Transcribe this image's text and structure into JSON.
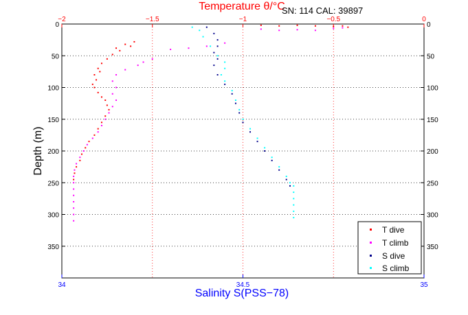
{
  "chart_data": {
    "type": "scatter",
    "title": "Temperature θ/°C",
    "annotation": "SN: 114  CAL: 39897",
    "ylabel": "Depth (m)",
    "xlabel_bottom": "Salinity S(PSS−78)",
    "ylim": [
      0,
      400
    ],
    "y_reversed": true,
    "top_axis": {
      "lim": [
        -2,
        0
      ],
      "ticks": [
        -2,
        -1.5,
        -1,
        -0.5,
        0
      ],
      "tick_labels": [
        "−2",
        "−1.5",
        "−1",
        "−0.5",
        "0"
      ],
      "color": "#ff0000"
    },
    "bottom_axis": {
      "lim": [
        34,
        35
      ],
      "ticks": [
        34,
        34.5,
        35
      ],
      "tick_labels": [
        "34",
        "34.5",
        "35"
      ],
      "color": "#0000ff"
    },
    "y_ticks": [
      0,
      50,
      100,
      150,
      200,
      250,
      300,
      350
    ],
    "y_tick_labels": [
      "0",
      "50",
      "100",
      "150",
      "200",
      "250",
      "300",
      "350"
    ],
    "grid": true,
    "legend_position": "bottom-right",
    "series": [
      {
        "name": "T dive",
        "color": "#ff0000",
        "axis": "top",
        "points": [
          [
            -1.6,
            28
          ],
          [
            -1.65,
            32
          ],
          [
            -1.62,
            35
          ],
          [
            -1.7,
            38
          ],
          [
            -1.68,
            42
          ],
          [
            -1.72,
            48
          ],
          [
            -1.75,
            55
          ],
          [
            -1.78,
            62
          ],
          [
            -1.8,
            70
          ],
          [
            -1.79,
            75
          ],
          [
            -1.82,
            80
          ],
          [
            -1.81,
            88
          ],
          [
            -1.83,
            95
          ],
          [
            -1.82,
            100
          ],
          [
            -1.8,
            108
          ],
          [
            -1.78,
            115
          ],
          [
            -1.76,
            120
          ],
          [
            -1.75,
            128
          ],
          [
            -1.74,
            135
          ],
          [
            -1.76,
            145
          ],
          [
            -1.78,
            155
          ],
          [
            -1.8,
            165
          ],
          [
            -1.82,
            175
          ],
          [
            -1.85,
            185
          ],
          [
            -1.87,
            195
          ],
          [
            -1.89,
            205
          ],
          [
            -1.9,
            215
          ],
          [
            -1.92,
            225
          ],
          [
            -1.93,
            235
          ],
          [
            -1.935,
            245
          ],
          [
            -0.9,
            2
          ],
          [
            -0.8,
            3
          ],
          [
            -0.7,
            2
          ],
          [
            -0.6,
            3
          ],
          [
            -0.5,
            4
          ],
          [
            -0.45,
            3
          ],
          [
            -0.42,
            5
          ]
        ]
      },
      {
        "name": "T climb",
        "color": "#ff00ff",
        "axis": "top",
        "points": [
          [
            -1.5,
            55
          ],
          [
            -1.55,
            60
          ],
          [
            -1.58,
            65
          ],
          [
            -1.65,
            72
          ],
          [
            -1.7,
            80
          ],
          [
            -1.72,
            90
          ],
          [
            -1.7,
            100
          ],
          [
            -1.72,
            110
          ],
          [
            -1.7,
            120
          ],
          [
            -1.72,
            130
          ],
          [
            -1.74,
            140
          ],
          [
            -1.76,
            150
          ],
          [
            -1.78,
            160
          ],
          [
            -1.8,
            170
          ],
          [
            -1.83,
            180
          ],
          [
            -1.86,
            190
          ],
          [
            -1.88,
            200
          ],
          [
            -1.9,
            210
          ],
          [
            -1.92,
            220
          ],
          [
            -1.93,
            230
          ],
          [
            -1.935,
            240
          ],
          [
            -1.935,
            250
          ],
          [
            -1.935,
            260
          ],
          [
            -1.935,
            270
          ],
          [
            -1.935,
            280
          ],
          [
            -1.935,
            290
          ],
          [
            -1.935,
            300
          ],
          [
            -1.935,
            310
          ],
          [
            -1.4,
            40
          ],
          [
            -1.3,
            38
          ],
          [
            -1.2,
            35
          ],
          [
            -1.1,
            30
          ],
          [
            -0.9,
            8
          ],
          [
            -0.8,
            10
          ],
          [
            -0.7,
            9
          ],
          [
            -0.6,
            10
          ],
          [
            -0.5,
            7
          ],
          [
            -0.45,
            6
          ]
        ]
      },
      {
        "name": "S dive",
        "color": "#00008b",
        "axis": "bottom",
        "points": [
          [
            34.4,
            5
          ],
          [
            34.42,
            15
          ],
          [
            34.43,
            25
          ],
          [
            34.43,
            35
          ],
          [
            34.42,
            45
          ],
          [
            34.43,
            55
          ],
          [
            34.42,
            65
          ],
          [
            34.43,
            80
          ],
          [
            34.45,
            95
          ],
          [
            34.47,
            110
          ],
          [
            34.48,
            125
          ],
          [
            34.49,
            140
          ],
          [
            34.5,
            155
          ],
          [
            34.52,
            170
          ],
          [
            34.54,
            185
          ],
          [
            34.56,
            200
          ],
          [
            34.58,
            215
          ],
          [
            34.6,
            230
          ],
          [
            34.62,
            245
          ],
          [
            34.63,
            255
          ]
        ]
      },
      {
        "name": "S climb",
        "color": "#00ffff",
        "axis": "bottom",
        "points": [
          [
            34.36,
            5
          ],
          [
            34.38,
            10
          ],
          [
            34.39,
            20
          ],
          [
            34.41,
            35
          ],
          [
            34.43,
            50
          ],
          [
            34.45,
            60
          ],
          [
            34.45,
            70
          ],
          [
            34.44,
            80
          ],
          [
            34.45,
            90
          ],
          [
            34.47,
            105
          ],
          [
            34.48,
            120
          ],
          [
            34.49,
            135
          ],
          [
            34.5,
            150
          ],
          [
            34.52,
            165
          ],
          [
            34.54,
            180
          ],
          [
            34.56,
            195
          ],
          [
            34.58,
            210
          ],
          [
            34.6,
            225
          ],
          [
            34.62,
            240
          ],
          [
            34.63,
            250
          ],
          [
            34.64,
            255
          ],
          [
            34.64,
            265
          ],
          [
            34.64,
            275
          ],
          [
            34.64,
            285
          ],
          [
            34.64,
            295
          ],
          [
            34.64,
            305
          ]
        ]
      }
    ]
  }
}
